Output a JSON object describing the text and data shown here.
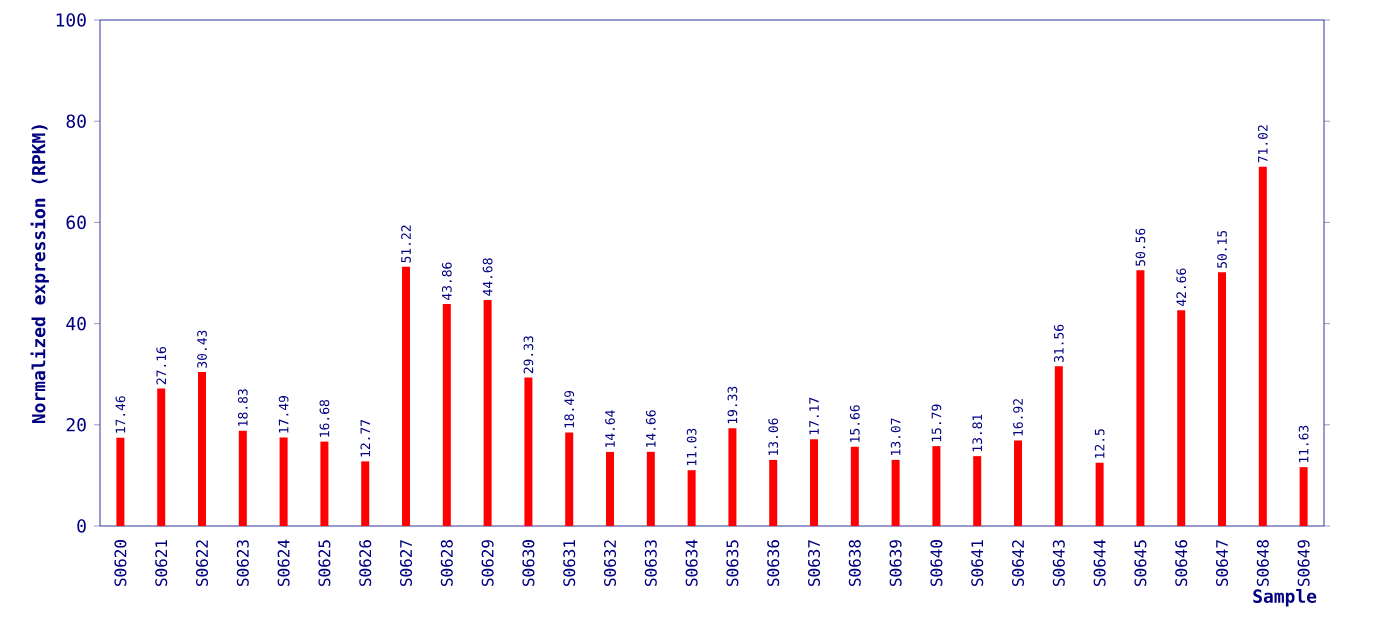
{
  "chart_data": {
    "type": "bar",
    "xlabel": "Sample",
    "ylabel": "Normalized expression (RPKM)",
    "categories": [
      "S0620",
      "S0621",
      "S0622",
      "S0623",
      "S0624",
      "S0625",
      "S0626",
      "S0627",
      "S0628",
      "S0629",
      "S0630",
      "S0631",
      "S0632",
      "S0633",
      "S0634",
      "S0635",
      "S0636",
      "S0637",
      "S0638",
      "S0639",
      "S0640",
      "S0641",
      "S0642",
      "S0643",
      "S0644",
      "S0645",
      "S0646",
      "S0647",
      "S0648",
      "S0649"
    ],
    "values": [
      17.46,
      27.16,
      30.43,
      18.83,
      17.49,
      16.68,
      12.77,
      51.22,
      43.86,
      44.68,
      29.33,
      18.49,
      14.64,
      14.66,
      11.03,
      19.33,
      13.06,
      17.17,
      15.66,
      13.07,
      15.79,
      13.81,
      16.92,
      31.56,
      12.5,
      50.56,
      42.66,
      50.15,
      71.02,
      11.63
    ],
    "color": "#ff0000",
    "ylim": [
      0,
      100
    ],
    "yticks": [
      0,
      20,
      40,
      60,
      80,
      100
    ],
    "data_labels": true
  }
}
